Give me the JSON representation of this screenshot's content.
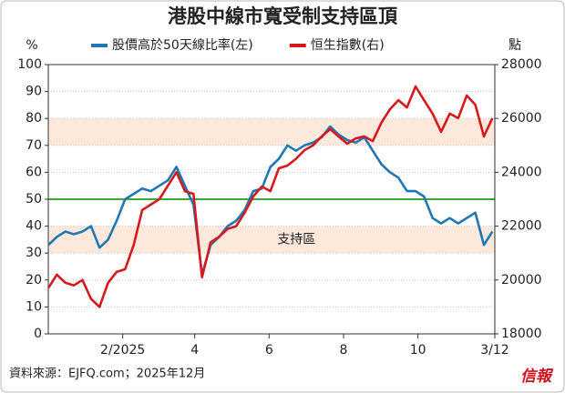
{
  "chart_data": {
    "type": "line",
    "title": "港股中線市寬受制支持區頂",
    "ylabel": "%",
    "y2label": "點",
    "source": "資料來源：EJFQ.com；2025年12月",
    "logo": "信報",
    "xlim": [
      -29,
      337
    ],
    "xticks": [
      {
        "value": 32,
        "label": "2/2025"
      },
      {
        "value": 91,
        "label": "4"
      },
      {
        "value": 152,
        "label": "6"
      },
      {
        "value": 213,
        "label": "8"
      },
      {
        "value": 274,
        "label": "10"
      },
      {
        "value": 337,
        "label": "3/12"
      }
    ],
    "ylim": [
      0,
      100
    ],
    "yticks": [
      0,
      10,
      20,
      30,
      40,
      50,
      60,
      70,
      80,
      90,
      100
    ],
    "y2lim": [
      18000,
      28000
    ],
    "y2ticks": [
      18000,
      20000,
      22000,
      24000,
      26000,
      28000
    ],
    "grid": true,
    "bands": [
      {
        "from": 30,
        "to": 40,
        "color": "#fde9dc"
      },
      {
        "from": 70,
        "to": 80,
        "color": "#fde9dc"
      }
    ],
    "reference_line": {
      "value": 50,
      "color": "#3aaa35"
    },
    "annotation": {
      "text": "支持區",
      "x": 152,
      "y": 35
    },
    "x": [
      -29,
      -22,
      -15,
      -8,
      -1,
      6,
      13,
      20,
      27,
      34,
      41,
      48,
      55,
      62,
      69,
      76,
      83,
      90,
      97,
      104,
      111,
      118,
      125,
      132,
      139,
      146,
      153,
      160,
      167,
      174,
      181,
      188,
      195,
      202,
      209,
      216,
      223,
      230,
      237,
      244,
      251,
      258,
      265,
      272,
      279,
      286,
      293,
      300,
      307,
      314,
      321,
      328,
      335
    ],
    "series": [
      {
        "name": "股價高於50天線比率(左)",
        "color": "#1f77b4",
        "axis": "y",
        "values": [
          33,
          36,
          38,
          37,
          38,
          40,
          32,
          35,
          42,
          50,
          52,
          54,
          53,
          55,
          57,
          62,
          55,
          48,
          22,
          33,
          36,
          40,
          42,
          46,
          53,
          54,
          62,
          65,
          70,
          68,
          70,
          71,
          73,
          77,
          74,
          72,
          71,
          73,
          68,
          63,
          60,
          58,
          53,
          53,
          51,
          43,
          41,
          43,
          41,
          43,
          45,
          33,
          38
        ]
      },
      {
        "name": "恒生指數(右)",
        "color": "#d7191c",
        "axis": "y2",
        "values": [
          19700,
          20200,
          19900,
          19800,
          20000,
          19300,
          19000,
          19900,
          20300,
          20400,
          21300,
          22600,
          22800,
          23000,
          23500,
          24000,
          23300,
          23200,
          20100,
          21400,
          21600,
          21900,
          22000,
          22500,
          23100,
          23470,
          23300,
          24150,
          24250,
          24500,
          24820,
          25000,
          25330,
          25600,
          25330,
          25060,
          25260,
          25330,
          25160,
          25840,
          26340,
          26680,
          26410,
          27190,
          26680,
          26180,
          25500,
          26180,
          26010,
          26850,
          26510,
          25330,
          26010
        ]
      }
    ]
  }
}
